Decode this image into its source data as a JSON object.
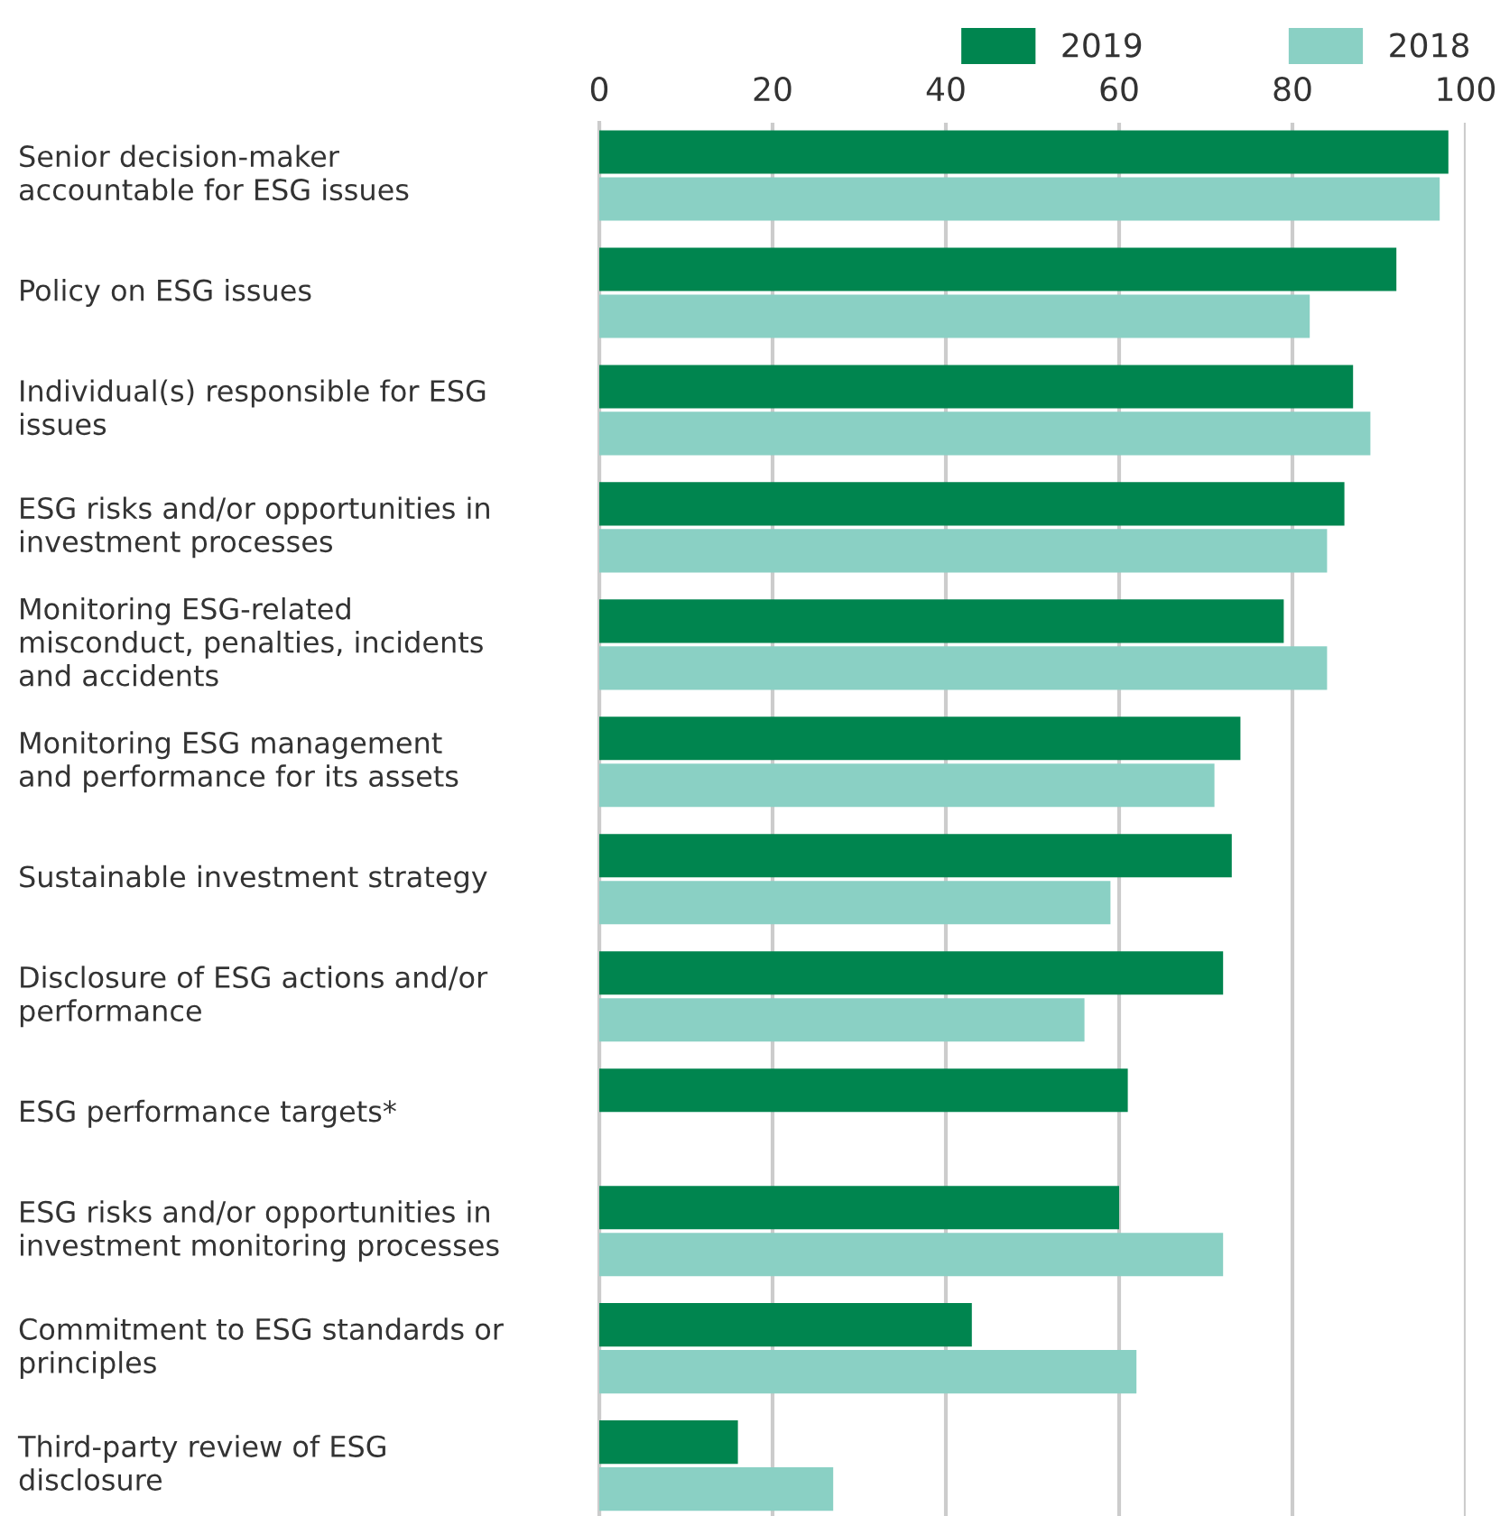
{
  "chart_data": {
    "type": "bar",
    "orientation": "horizontal",
    "categories": [
      "Senior decision-maker\naccountable for ESG issues",
      "Policy on ESG issues",
      "Individual(s) responsible for ESG\nissues",
      "ESG risks and/or opportunities in\ninvestment processes",
      "Monitoring ESG-related\nmisconduct, penalties, incidents\nand accidents",
      "Monitoring ESG management\nand performance for its assets",
      "Sustainable investment strategy",
      "Disclosure of ESG actions and/or\nperformance",
      "ESG performance targets*",
      "ESG risks and/or opportunities in\ninvestment monitoring processes",
      "Commitment to ESG standards or\nprinciples",
      "Third-party review of ESG\ndisclosure"
    ],
    "series": [
      {
        "name": "2019",
        "color": "#00854f",
        "values": [
          98,
          92,
          87,
          86,
          79,
          74,
          73,
          72,
          61,
          60,
          43,
          16
        ]
      },
      {
        "name": "2018",
        "color": "#8ad0c4",
        "values": [
          97,
          82,
          89,
          84,
          84,
          71,
          59,
          56,
          null,
          72,
          62,
          27
        ]
      }
    ],
    "xlim": [
      0,
      100
    ],
    "xticks": [
      0,
      20,
      40,
      60,
      80,
      100
    ],
    "grid": "x",
    "legend": "top right"
  }
}
